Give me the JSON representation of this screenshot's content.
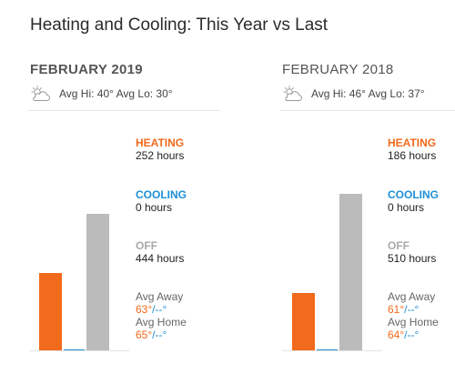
{
  "page": {
    "title": "Heating and Cooling: This Year vs Last"
  },
  "colors": {
    "heating": "#f26a1b",
    "cooling": "#1e8fd6",
    "off": "#bbbbbb"
  },
  "panels": [
    {
      "month": "FEBRUARY 2019",
      "weather_icon": "partly-cloudy-icon",
      "avg": "Avg Hi: 40° Avg Lo: 30°",
      "heating": {
        "label": "HEATING",
        "value": "252 hours",
        "hours": 252
      },
      "cooling": {
        "label": "COOLING",
        "value": "0 hours",
        "hours": 0
      },
      "off": {
        "label": "OFF",
        "value": "444 hours",
        "hours": 444
      },
      "avg_away": {
        "label": "Avg Away",
        "heat": "63°",
        "cool": "/--°"
      },
      "avg_home": {
        "label": "Avg Home",
        "heat": "65°",
        "cool": "/--°"
      }
    },
    {
      "month": "FEBRUARY 2018",
      "weather_icon": "partly-cloudy-icon",
      "avg": "Avg Hi: 46° Avg Lo: 37°",
      "heating": {
        "label": "HEATING",
        "value": "186 hours",
        "hours": 186
      },
      "cooling": {
        "label": "COOLING",
        "value": "0 hours",
        "hours": 0
      },
      "off": {
        "label": "OFF",
        "value": "510 hours",
        "hours": 510
      },
      "avg_away": {
        "label": "Avg Away",
        "heat": "61°",
        "cool": "/--°"
      },
      "avg_home": {
        "label": "Avg Home",
        "heat": "64°",
        "cool": "/--°"
      }
    }
  ]
}
